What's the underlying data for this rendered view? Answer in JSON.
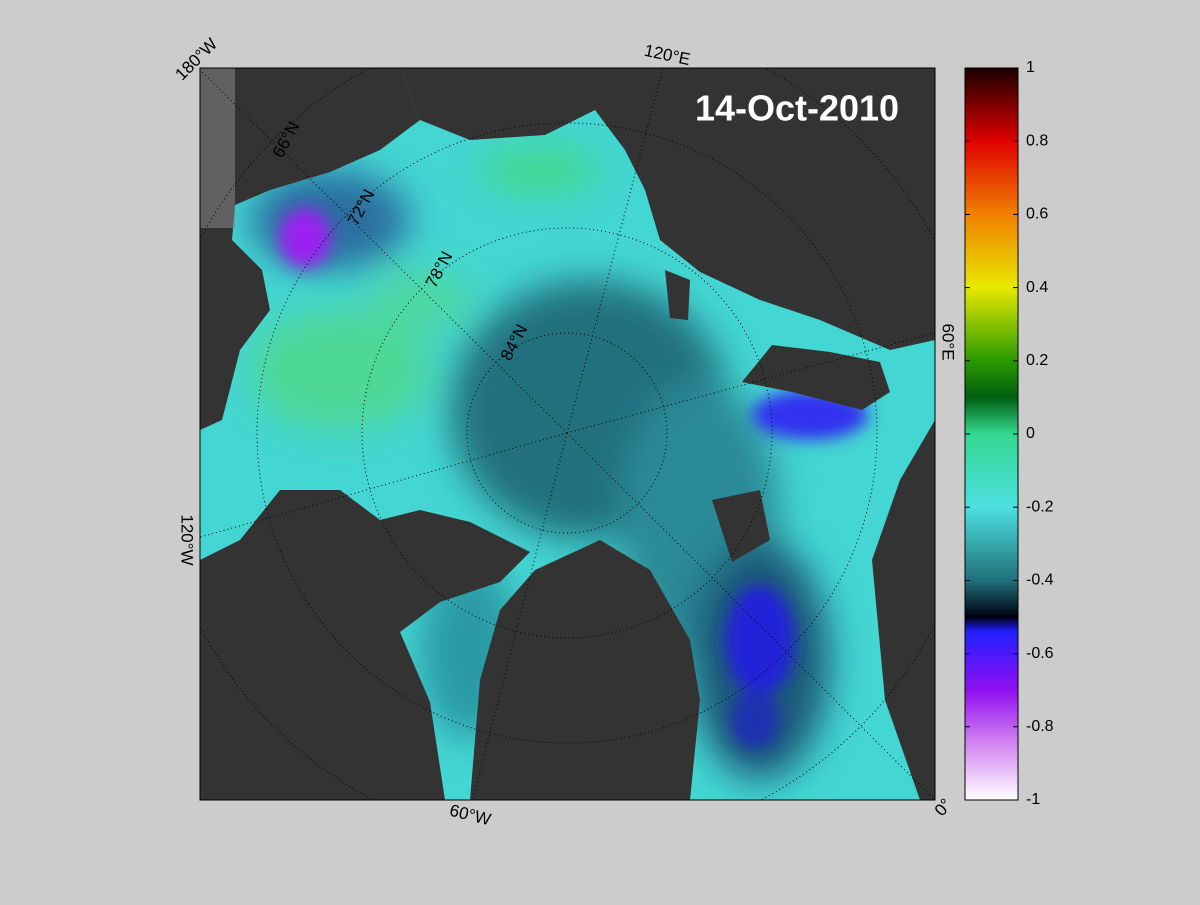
{
  "map": {
    "date": "14-Oct-2010",
    "longitude_labels": [
      "180°W",
      "120°E",
      "60°E",
      "0°",
      "60°W",
      "120°W"
    ],
    "latitude_labels": [
      "66°N",
      "72°N",
      "78°N",
      "84°N"
    ],
    "colorbar": {
      "lim": [
        -1,
        1
      ],
      "ticks": [
        1,
        0.8,
        0.6,
        0.4,
        0.2,
        0,
        -0.2,
        -0.4,
        -0.6,
        -0.8,
        -1
      ]
    }
  }
}
